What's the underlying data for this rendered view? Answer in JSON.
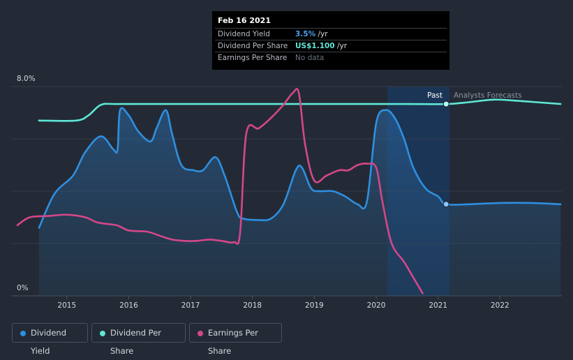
{
  "tooltip": {
    "date": "Feb 16 2021",
    "rows": [
      {
        "label": "Dividend Yield",
        "value": "3.5%",
        "unit": " /yr",
        "color": "#4aa3f0"
      },
      {
        "label": "Dividend Per Share",
        "value": "US$1.100",
        "unit": " /yr",
        "color": "#5ee8d6"
      },
      {
        "label": "Earnings Per Share",
        "value": "No data",
        "unit": "",
        "color": "#6b7280"
      }
    ]
  },
  "chart_data": {
    "type": "line",
    "ylabel_top": "8.0%",
    "ylabel_bottom": "0%",
    "ylim": [
      0,
      8
    ],
    "x_ticks": [
      "2015",
      "2016",
      "2017",
      "2018",
      "2019",
      "2020",
      "2021",
      "2022"
    ],
    "past_label": "Past",
    "forecast_label": "Analysts Forecasts",
    "grid": true,
    "series": [
      {
        "name": "Dividend Yield",
        "color": "#2f8fe0",
        "area": true,
        "points": [
          [
            2014.55,
            2.6
          ],
          [
            2014.8,
            3.9
          ],
          [
            2015.1,
            4.6
          ],
          [
            2015.3,
            5.5
          ],
          [
            2015.55,
            6.1
          ],
          [
            2015.75,
            5.6
          ],
          [
            2015.82,
            5.6
          ],
          [
            2015.86,
            7.1
          ],
          [
            2016.0,
            6.9
          ],
          [
            2016.15,
            6.3
          ],
          [
            2016.35,
            5.9
          ],
          [
            2016.45,
            6.4
          ],
          [
            2016.6,
            7.1
          ],
          [
            2016.7,
            6.2
          ],
          [
            2016.85,
            5.0
          ],
          [
            2017.05,
            4.8
          ],
          [
            2017.2,
            4.8
          ],
          [
            2017.4,
            5.3
          ],
          [
            2017.55,
            4.6
          ],
          [
            2017.75,
            3.2
          ],
          [
            2017.85,
            2.95
          ],
          [
            2018.1,
            2.9
          ],
          [
            2018.3,
            2.95
          ],
          [
            2018.5,
            3.5
          ],
          [
            2018.7,
            4.8
          ],
          [
            2018.8,
            4.9
          ],
          [
            2018.95,
            4.1
          ],
          [
            2019.1,
            4.0
          ],
          [
            2019.3,
            4.0
          ],
          [
            2019.5,
            3.8
          ],
          [
            2019.7,
            3.5
          ],
          [
            2019.85,
            3.6
          ],
          [
            2020.0,
            6.6
          ],
          [
            2020.15,
            7.1
          ],
          [
            2020.3,
            6.8
          ],
          [
            2020.45,
            6.0
          ],
          [
            2020.6,
            4.9
          ],
          [
            2020.8,
            4.1
          ],
          [
            2021.0,
            3.8
          ],
          [
            2021.13,
            3.5
          ],
          [
            2021.5,
            3.5
          ],
          [
            2022.0,
            3.55
          ],
          [
            2022.5,
            3.55
          ],
          [
            2022.98,
            3.5
          ]
        ]
      },
      {
        "name": "Dividend Per Share",
        "color": "#5ee8d6",
        "area": false,
        "points": [
          [
            2014.55,
            6.7
          ],
          [
            2015.15,
            6.7
          ],
          [
            2015.35,
            6.9
          ],
          [
            2015.55,
            7.3
          ],
          [
            2015.8,
            7.33
          ],
          [
            2016.5,
            7.33
          ],
          [
            2017.5,
            7.33
          ],
          [
            2018.5,
            7.33
          ],
          [
            2019.5,
            7.33
          ],
          [
            2020.5,
            7.33
          ],
          [
            2021.13,
            7.33
          ],
          [
            2021.5,
            7.4
          ],
          [
            2021.9,
            7.5
          ],
          [
            2022.3,
            7.45
          ],
          [
            2022.98,
            7.33
          ]
        ]
      },
      {
        "name": "Earnings Per Share",
        "color": "#d4478a",
        "area": false,
        "points": [
          [
            2014.2,
            2.7
          ],
          [
            2014.4,
            3.0
          ],
          [
            2014.7,
            3.05
          ],
          [
            2015.0,
            3.1
          ],
          [
            2015.3,
            3.0
          ],
          [
            2015.5,
            2.8
          ],
          [
            2015.8,
            2.7
          ],
          [
            2016.0,
            2.5
          ],
          [
            2016.3,
            2.45
          ],
          [
            2016.5,
            2.3
          ],
          [
            2016.7,
            2.15
          ],
          [
            2016.9,
            2.1
          ],
          [
            2017.1,
            2.1
          ],
          [
            2017.3,
            2.15
          ],
          [
            2017.5,
            2.1
          ],
          [
            2017.7,
            2.05
          ],
          [
            2017.8,
            2.4
          ],
          [
            2017.9,
            6.2
          ],
          [
            2018.1,
            6.4
          ],
          [
            2018.3,
            6.8
          ],
          [
            2018.5,
            7.3
          ],
          [
            2018.65,
            7.75
          ],
          [
            2018.75,
            7.75
          ],
          [
            2018.85,
            5.8
          ],
          [
            2019.0,
            4.4
          ],
          [
            2019.2,
            4.6
          ],
          [
            2019.4,
            4.8
          ],
          [
            2019.55,
            4.8
          ],
          [
            2019.7,
            5.0
          ],
          [
            2019.85,
            5.05
          ],
          [
            2020.0,
            4.9
          ],
          [
            2020.1,
            3.6
          ],
          [
            2020.25,
            2.0
          ],
          [
            2020.45,
            1.3
          ],
          [
            2020.6,
            0.7
          ],
          [
            2020.75,
            0.1
          ]
        ]
      }
    ],
    "past_marker_x": 2021.13,
    "legend": [
      "Dividend Yield",
      "Dividend Per Share",
      "Earnings Per Share"
    ]
  }
}
